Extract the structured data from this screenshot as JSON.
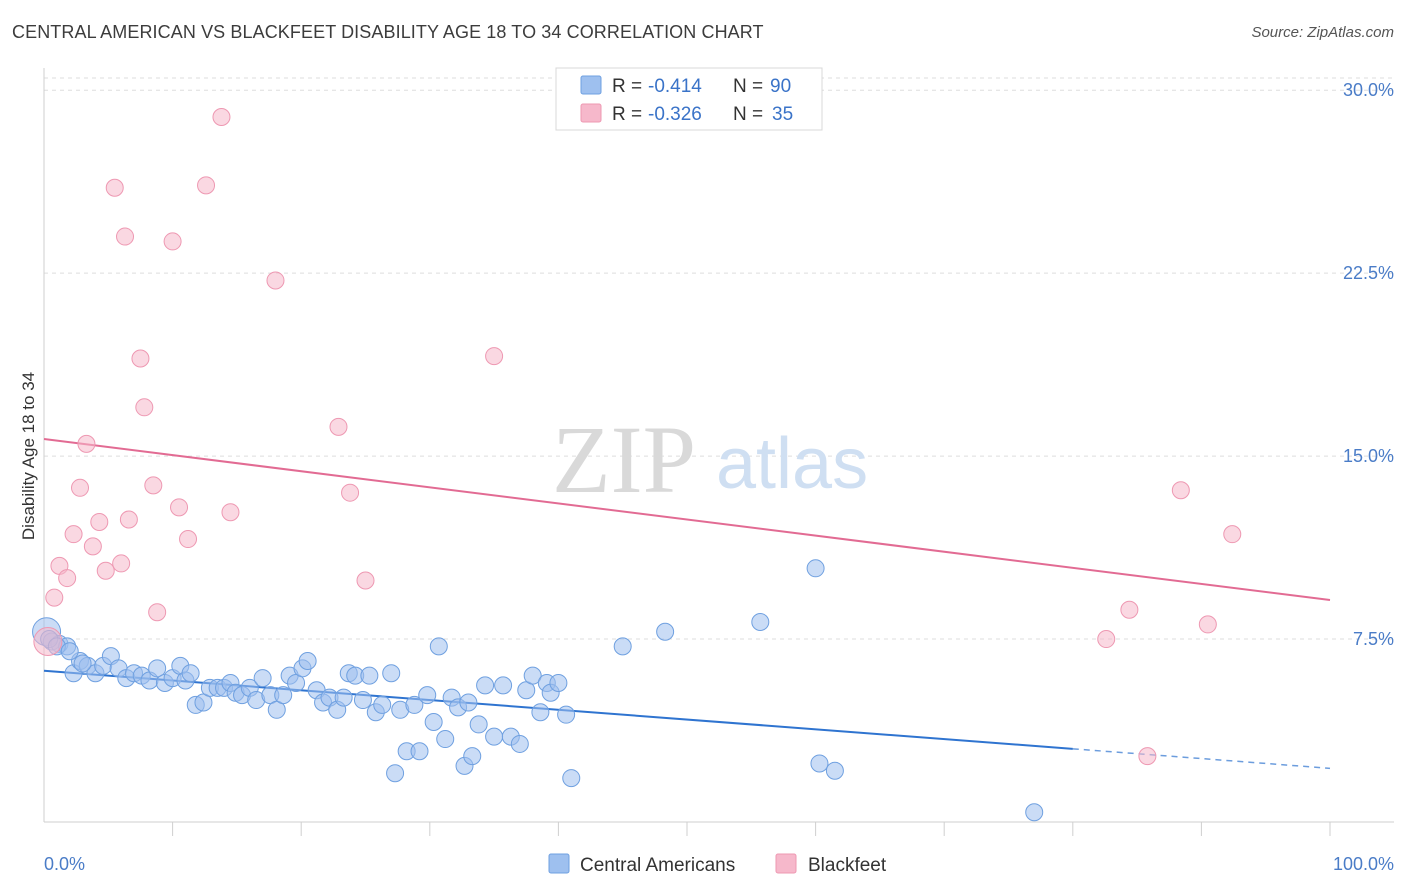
{
  "title": "CENTRAL AMERICAN VS BLACKFEET DISABILITY AGE 18 TO 34 CORRELATION CHART",
  "source": "Source: ZipAtlas.com",
  "watermark": {
    "zip": "ZIP",
    "atlas": "atlas"
  },
  "legend": {
    "r_label": "R =",
    "n_label": "N =",
    "rows": [
      {
        "r": "-0.414",
        "n": "90",
        "color": "#9ec0ef"
      },
      {
        "r": "-0.326",
        "n": "35",
        "color": "#f6b8cb"
      }
    ]
  },
  "bottom_legend": [
    {
      "label": "Central Americans",
      "color": "#9ec0ef"
    },
    {
      "label": "Blackfeet",
      "color": "#f6b8cb"
    }
  ],
  "chart_data": {
    "type": "scatter",
    "title": "CENTRAL AMERICAN VS BLACKFEET DISABILITY AGE 18 TO 34 CORRELATION CHART",
    "xlabel": "",
    "ylabel": "Disability Age 18 to 34",
    "xlim": [
      0,
      100
    ],
    "ylim": [
      0,
      30.5
    ],
    "x_tick_labels": [
      "0.0%",
      "100.0%"
    ],
    "y_ticks": [
      7.5,
      15.0,
      22.5,
      30.0
    ],
    "y_tick_labels": [
      "7.5%",
      "15.0%",
      "22.5%",
      "30.0%"
    ],
    "grid": true,
    "legend_position": "top-center",
    "series": [
      {
        "name": "Central Americans",
        "color": "#9ec0ef",
        "stroke": "#6fa0e0",
        "trend_color": "#2f74d0",
        "trend": {
          "x0": 0,
          "y0": 6.2,
          "x1": 80,
          "y1": 3.0,
          "dashed_to_x": 100,
          "dashed_to_y": 2.2
        },
        "points": [
          [
            0.2,
            7.8
          ],
          [
            0.6,
            7.4
          ],
          [
            1.2,
            7.3
          ],
          [
            1.8,
            7.2
          ],
          [
            2.3,
            6.1
          ],
          [
            2.8,
            6.6
          ],
          [
            3.4,
            6.4
          ],
          [
            4.0,
            6.1
          ],
          [
            4.6,
            6.4
          ],
          [
            5.2,
            6.8
          ],
          [
            5.8,
            6.3
          ],
          [
            6.4,
            5.9
          ],
          [
            7.0,
            6.1
          ],
          [
            7.6,
            6.0
          ],
          [
            8.2,
            5.8
          ],
          [
            8.8,
            6.3
          ],
          [
            9.4,
            5.7
          ],
          [
            10.0,
            5.9
          ],
          [
            10.6,
            6.4
          ],
          [
            11.0,
            5.8
          ],
          [
            11.4,
            6.1
          ],
          [
            11.8,
            4.8
          ],
          [
            12.4,
            4.9
          ],
          [
            12.9,
            5.5
          ],
          [
            13.5,
            5.5
          ],
          [
            14.0,
            5.5
          ],
          [
            14.5,
            5.7
          ],
          [
            14.9,
            5.3
          ],
          [
            15.4,
            5.2
          ],
          [
            16.0,
            5.5
          ],
          [
            16.5,
            5.0
          ],
          [
            17.0,
            5.9
          ],
          [
            17.6,
            5.2
          ],
          [
            18.1,
            4.6
          ],
          [
            18.6,
            5.2
          ],
          [
            19.1,
            6.0
          ],
          [
            19.6,
            5.7
          ],
          [
            20.1,
            6.3
          ],
          [
            20.5,
            6.6
          ],
          [
            21.2,
            5.4
          ],
          [
            21.7,
            4.9
          ],
          [
            22.2,
            5.1
          ],
          [
            22.8,
            4.6
          ],
          [
            23.3,
            5.1
          ],
          [
            23.7,
            6.1
          ],
          [
            24.2,
            6.0
          ],
          [
            24.8,
            5.0
          ],
          [
            25.3,
            6.0
          ],
          [
            25.8,
            4.5
          ],
          [
            26.3,
            4.8
          ],
          [
            27.0,
            6.1
          ],
          [
            27.3,
            2.0
          ],
          [
            27.7,
            4.6
          ],
          [
            28.2,
            2.9
          ],
          [
            28.8,
            4.8
          ],
          [
            29.2,
            2.9
          ],
          [
            29.8,
            5.2
          ],
          [
            30.3,
            4.1
          ],
          [
            30.7,
            7.2
          ],
          [
            31.2,
            3.4
          ],
          [
            31.7,
            5.1
          ],
          [
            32.2,
            4.7
          ],
          [
            32.7,
            2.3
          ],
          [
            33.0,
            4.9
          ],
          [
            33.3,
            2.7
          ],
          [
            33.8,
            4.0
          ],
          [
            34.3,
            5.6
          ],
          [
            35.0,
            3.5
          ],
          [
            35.7,
            5.6
          ],
          [
            36.3,
            3.5
          ],
          [
            37.0,
            3.2
          ],
          [
            37.5,
            5.4
          ],
          [
            38.0,
            6.0
          ],
          [
            38.6,
            4.5
          ],
          [
            39.1,
            5.7
          ],
          [
            39.4,
            5.3
          ],
          [
            40.0,
            5.7
          ],
          [
            40.6,
            4.4
          ],
          [
            41.0,
            1.8
          ],
          [
            45.0,
            7.2
          ],
          [
            48.3,
            7.8
          ],
          [
            55.7,
            8.2
          ],
          [
            60.0,
            10.4
          ],
          [
            60.3,
            2.4
          ],
          [
            61.5,
            2.1
          ],
          [
            77.0,
            0.4
          ],
          [
            0.4,
            7.5
          ],
          [
            1.0,
            7.2
          ],
          [
            2.0,
            7.0
          ],
          [
            3.0,
            6.5
          ]
        ]
      },
      {
        "name": "Blackfeet",
        "color": "#f6b8cb",
        "stroke": "#ee98b2",
        "trend_color": "#e26b93",
        "trend": {
          "x0": 0,
          "y0": 15.7,
          "x1": 100,
          "y1": 9.1
        },
        "points": [
          [
            0.3,
            7.4
          ],
          [
            0.8,
            9.2
          ],
          [
            1.2,
            10.5
          ],
          [
            1.8,
            10.0
          ],
          [
            2.3,
            11.8
          ],
          [
            2.8,
            13.7
          ],
          [
            3.3,
            15.5
          ],
          [
            3.8,
            11.3
          ],
          [
            4.3,
            12.3
          ],
          [
            4.8,
            10.3
          ],
          [
            5.5,
            26.0
          ],
          [
            6.0,
            10.6
          ],
          [
            6.3,
            24.0
          ],
          [
            6.6,
            12.4
          ],
          [
            7.5,
            19.0
          ],
          [
            7.8,
            17.0
          ],
          [
            8.5,
            13.8
          ],
          [
            8.8,
            8.6
          ],
          [
            10.0,
            23.8
          ],
          [
            10.5,
            12.9
          ],
          [
            11.2,
            11.6
          ],
          [
            12.6,
            26.1
          ],
          [
            13.8,
            28.9
          ],
          [
            14.5,
            12.7
          ],
          [
            18.0,
            22.2
          ],
          [
            22.9,
            16.2
          ],
          [
            23.8,
            13.5
          ],
          [
            25.0,
            9.9
          ],
          [
            35.0,
            19.1
          ],
          [
            82.6,
            7.5
          ],
          [
            84.4,
            8.7
          ],
          [
            85.8,
            2.7
          ],
          [
            88.4,
            13.6
          ],
          [
            90.5,
            8.1
          ],
          [
            92.4,
            11.8
          ]
        ]
      }
    ]
  }
}
